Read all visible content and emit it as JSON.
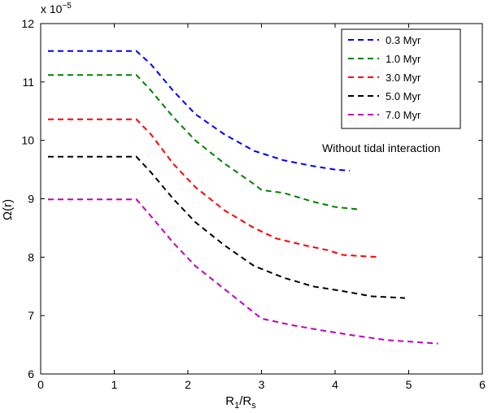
{
  "chart_data": {
    "type": "line",
    "xlabel": "R",
    "xlabel_sub1": "1",
    "xlabel_mid": "/R",
    "xlabel_sub2": "s",
    "ylabel": "Ω(r)",
    "y_multiplier_text": "x 10",
    "y_multiplier_exp": "−5",
    "xlim": [
      0,
      6
    ],
    "ylim": [
      6,
      12
    ],
    "xticks": [
      0,
      1,
      2,
      3,
      4,
      5,
      6
    ],
    "yticks": [
      6,
      7,
      8,
      9,
      10,
      11,
      12
    ],
    "annotation": "Without tidal interaction",
    "legend_position": "top-right",
    "series": [
      {
        "name": "0.3 Myr",
        "color": "#0000ff",
        "points": [
          [
            0.1,
            11.53
          ],
          [
            1.3,
            11.53
          ],
          [
            1.5,
            11.3
          ],
          [
            1.8,
            10.85
          ],
          [
            2.1,
            10.45
          ],
          [
            2.5,
            10.1
          ],
          [
            2.9,
            9.82
          ],
          [
            3.3,
            9.66
          ],
          [
            3.7,
            9.56
          ],
          [
            4.0,
            9.5
          ],
          [
            4.2,
            9.48
          ]
        ]
      },
      {
        "name": "1.0 Myr",
        "color": "#008000",
        "points": [
          [
            0.1,
            11.12
          ],
          [
            1.3,
            11.12
          ],
          [
            1.5,
            10.85
          ],
          [
            1.8,
            10.4
          ],
          [
            2.1,
            10.0
          ],
          [
            2.5,
            9.6
          ],
          [
            2.9,
            9.25
          ],
          [
            3.0,
            9.15
          ],
          [
            3.3,
            9.1
          ],
          [
            3.7,
            8.95
          ],
          [
            4.0,
            8.86
          ],
          [
            4.3,
            8.82
          ]
        ]
      },
      {
        "name": "3.0 Myr",
        "color": "#ff0000",
        "points": [
          [
            0.1,
            10.36
          ],
          [
            1.3,
            10.36
          ],
          [
            1.5,
            10.1
          ],
          [
            1.8,
            9.6
          ],
          [
            2.1,
            9.2
          ],
          [
            2.5,
            8.8
          ],
          [
            2.9,
            8.5
          ],
          [
            3.2,
            8.32
          ],
          [
            3.6,
            8.2
          ],
          [
            3.9,
            8.12
          ],
          [
            4.1,
            8.04
          ],
          [
            4.6,
            8.0
          ]
        ]
      },
      {
        "name": "5.0 Myr",
        "color": "#000000",
        "points": [
          [
            0.1,
            9.72
          ],
          [
            1.3,
            9.72
          ],
          [
            1.5,
            9.45
          ],
          [
            1.8,
            9.0
          ],
          [
            2.1,
            8.6
          ],
          [
            2.5,
            8.2
          ],
          [
            2.9,
            7.85
          ],
          [
            3.3,
            7.65
          ],
          [
            3.7,
            7.5
          ],
          [
            4.1,
            7.42
          ],
          [
            4.5,
            7.33
          ],
          [
            4.95,
            7.3
          ]
        ]
      },
      {
        "name": "7.0 Myr",
        "color": "#bf00bf",
        "points": [
          [
            0.1,
            8.99
          ],
          [
            1.3,
            8.99
          ],
          [
            1.5,
            8.7
          ],
          [
            1.8,
            8.25
          ],
          [
            2.1,
            7.85
          ],
          [
            2.5,
            7.45
          ],
          [
            3.0,
            6.95
          ],
          [
            3.4,
            6.84
          ],
          [
            3.8,
            6.75
          ],
          [
            4.2,
            6.67
          ],
          [
            4.7,
            6.58
          ],
          [
            5.4,
            6.52
          ]
        ]
      }
    ]
  }
}
